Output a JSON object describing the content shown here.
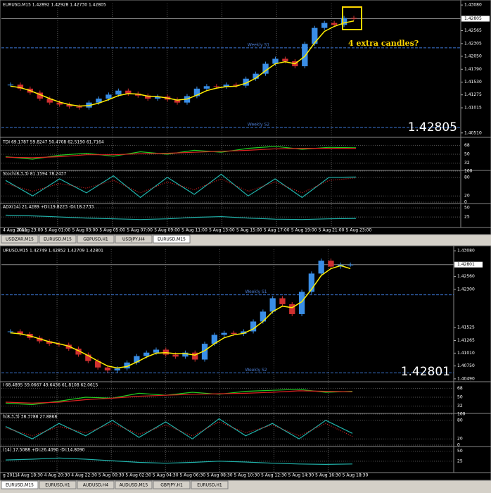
{
  "windows": [
    {
      "header": "EURUSD,M15  1.42892 1.42928 1.42730 1.42805",
      "ylim": [
        1.4045,
        1.4311
      ],
      "price_ticks": [
        {
          "value": 1.4308,
          "label": "1.43080"
        },
        {
          "value": 1.42565,
          "label": "1.42565"
        },
        {
          "value": 1.42305,
          "label": "1.42305"
        },
        {
          "value": 1.4205,
          "label": "1.42050"
        },
        {
          "value": 1.4179,
          "label": "1.41790"
        },
        {
          "value": 1.4153,
          "label": "1.41530"
        },
        {
          "value": 1.41275,
          "label": "1.41275"
        },
        {
          "value": 1.41015,
          "label": "1.41015"
        },
        {
          "value": 1.4051,
          "label": "1.40510"
        }
      ],
      "current_price": {
        "value": 1.42805,
        "label": "1.42805"
      },
      "levels": [
        {
          "label": "Weekly S1",
          "value": 1.4222
        },
        {
          "label": "Weekly S2",
          "value": 1.4062
        }
      ],
      "annotation": "4 extra candles?",
      "closes": [
        1.4148,
        1.414,
        1.4132,
        1.412,
        1.4112,
        1.4108,
        1.4104,
        1.4102,
        1.4112,
        1.412,
        1.4128,
        1.4136,
        1.413,
        1.4126,
        1.412,
        1.4124,
        1.4118,
        1.4112,
        1.4125,
        1.414,
        1.4145,
        1.4144,
        1.4148,
        1.4146,
        1.416,
        1.417,
        1.419,
        1.42,
        1.4195,
        1.4185,
        1.423,
        1.4262,
        1.4272,
        1.4268,
        1.4282,
        1.4281
      ],
      "ma": [
        1.4145,
        1.4142,
        1.4136,
        1.4128,
        1.412,
        1.4113,
        1.4108,
        1.4105,
        1.4106,
        1.4111,
        1.4118,
        1.4126,
        1.413,
        1.4129,
        1.4125,
        1.4124,
        1.4121,
        1.4117,
        1.4119,
        1.4127,
        1.4136,
        1.4141,
        1.4144,
        1.4145,
        1.4151,
        1.4161,
        1.4176,
        1.419,
        1.4194,
        1.419,
        1.4205,
        1.4232,
        1.4255,
        1.4265,
        1.4272,
        1.4276
      ],
      "indicators": [
        {
          "header": "TDI 69.1787 59.8247 50.4708 62.5190 61.7164",
          "ylim": [
            20,
            80
          ],
          "ticks": [
            32,
            50,
            68
          ],
          "values": [
            45,
            40,
            48,
            52,
            46,
            55,
            50,
            58,
            54,
            62,
            66,
            60,
            64,
            63
          ],
          "values2": [
            44,
            43,
            45,
            49,
            49,
            51,
            52,
            54,
            56,
            58,
            61,
            62,
            62,
            62
          ]
        },
        {
          "header": "Stoch(8,3,3) 81.1594 78.2437",
          "ylim": [
            0,
            100
          ],
          "ticks": [
            0,
            20,
            80,
            100
          ],
          "values": [
            70,
            20,
            75,
            30,
            85,
            15,
            80,
            25,
            90,
            20,
            75,
            15,
            80,
            81
          ],
          "values2": [
            60,
            35,
            60,
            45,
            70,
            30,
            65,
            40,
            75,
            35,
            65,
            30,
            70,
            78
          ]
        },
        {
          "header": "ADX(14) 21.4289 +DI:19.8223 -DI:18.2733",
          "ylim": [
            0,
            60
          ],
          "ticks": [
            25,
            50
          ],
          "values": [
            30,
            28,
            25,
            22,
            20,
            18,
            20,
            24,
            26,
            22,
            19,
            18,
            20,
            21
          ]
        }
      ],
      "time_labels": [
        "4 Aug 2011",
        "4 Aug 23:00",
        "5 Aug 01:00",
        "5 Aug 03:00",
        "5 Aug 05:00",
        "5 Aug 07:00",
        "5 Aug 09:00",
        "5 Aug 11:00",
        "5 Aug 13:00",
        "5 Aug 15:00",
        "5 Aug 17:00",
        "5 Aug 19:00",
        "5 Aug 21:00",
        "5 Aug 23:00"
      ],
      "tabs": [
        "USDZAR,M15",
        "EURUSD,M15",
        "GBPUSD,H1",
        "USDJPY,H4",
        "EURUSD,M15"
      ],
      "active_tab": 4
    },
    {
      "header": "URUSD,M15  1.42749 1.42852 1.42709 1.42801",
      "ylim": [
        1.4046,
        1.4311
      ],
      "price_ticks": [
        {
          "value": 1.4308,
          "label": "1.43080"
        },
        {
          "value": 1.4256,
          "label": "1.42560"
        },
        {
          "value": 1.423,
          "label": "1.42300"
        },
        {
          "value": 1.41525,
          "label": "1.41525"
        },
        {
          "value": 1.41265,
          "label": "1.41265"
        },
        {
          "value": 1.4101,
          "label": "1.41010"
        },
        {
          "value": 1.4075,
          "label": "1.40750"
        },
        {
          "value": 1.4049,
          "label": "1.40490"
        }
      ],
      "current_price": {
        "value": 1.42801,
        "label": "1.42801"
      },
      "levels": [
        {
          "label": "Weekly S1",
          "value": 1.4219
        },
        {
          "label": "Weekly S2",
          "value": 1.4061
        }
      ],
      "closes": [
        1.4145,
        1.414,
        1.4132,
        1.4125,
        1.412,
        1.4118,
        1.411,
        1.4098,
        1.4085,
        1.4072,
        1.4066,
        1.407,
        1.4082,
        1.4095,
        1.4102,
        1.4108,
        1.4098,
        1.4094,
        1.4102,
        1.4088,
        1.412,
        1.4138,
        1.4142,
        1.414,
        1.4145,
        1.4165,
        1.4185,
        1.4212,
        1.42,
        1.418,
        1.4225,
        1.4262,
        1.4288,
        1.4276,
        1.428,
        1.428
      ],
      "ma": [
        1.4142,
        1.414,
        1.4136,
        1.413,
        1.4124,
        1.412,
        1.4115,
        1.4106,
        1.4096,
        1.4085,
        1.4075,
        1.4071,
        1.4074,
        1.4083,
        1.4093,
        1.4101,
        1.4102,
        1.41,
        1.41,
        1.4097,
        1.4106,
        1.412,
        1.4132,
        1.4138,
        1.4141,
        1.415,
        1.4165,
        1.4185,
        1.4196,
        1.4193,
        1.4205,
        1.423,
        1.4258,
        1.4272,
        1.4278,
        1.4272
      ],
      "indicators": [
        {
          "header": "I 68.4895 59.0667 49.6436 61.8108 62.0615",
          "ylim": [
            20,
            80
          ],
          "ticks": [
            32,
            50,
            68
          ],
          "values": [
            38,
            35,
            42,
            50,
            48,
            58,
            54,
            60,
            56,
            62,
            64,
            66,
            60,
            62
          ],
          "values2": [
            40,
            38,
            40,
            45,
            48,
            52,
            54,
            56,
            57,
            58,
            60,
            63,
            62,
            61
          ]
        },
        {
          "header": "h(8,3,3) 38.3788 27.8868",
          "ylim": [
            0,
            100
          ],
          "ticks": [
            0,
            20,
            80,
            100
          ],
          "values": [
            60,
            20,
            70,
            30,
            80,
            25,
            75,
            20,
            85,
            30,
            70,
            20,
            80,
            38
          ],
          "values2": [
            55,
            30,
            60,
            40,
            70,
            35,
            65,
            30,
            75,
            40,
            65,
            30,
            70,
            28
          ]
        },
        {
          "header": "(14) 17.5088 +DI:26.4090 -DI:14.8090",
          "ylim": [
            0,
            60
          ],
          "ticks": [
            25,
            50
          ],
          "values": [
            28,
            30,
            33,
            30,
            26,
            22,
            20,
            22,
            25,
            23,
            20,
            18,
            17,
            18
          ]
        }
      ],
      "time_labels": [
        "g 2011",
        "4 Aug 18:30",
        "4 Aug 20:30",
        "4 Aug 22:30",
        "5 Aug 00:30",
        "5 Aug 02:30",
        "5 Aug 04:30",
        "5 Aug 06:30",
        "5 Aug 08:30",
        "5 Aug 10:30",
        "5 Aug 12:30",
        "5 Aug 14:30",
        "5 Aug 16:30",
        "5 Aug 18:30"
      ],
      "tabs": [
        "EURUSD,M15",
        "EURUSD,H1",
        "AUDUSD,H4",
        "AUDUSD,M15",
        "GBPJPY,H1",
        "EURUSD,H1"
      ],
      "active_tab": 0
    }
  ]
}
